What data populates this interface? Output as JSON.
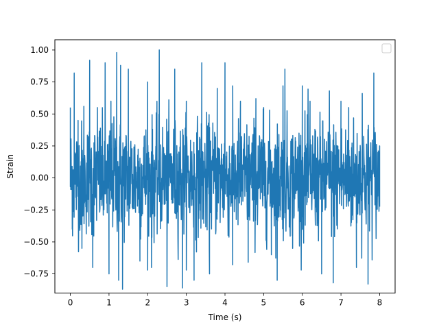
{
  "chart_data": {
    "type": "line",
    "title": "",
    "xlabel": "Time (s)",
    "ylabel": "Strain",
    "xlim": [
      -0.4,
      8.4
    ],
    "ylim": [
      -0.9,
      1.08
    ],
    "xticks": [
      0,
      1,
      2,
      3,
      4,
      5,
      6,
      7,
      8
    ],
    "xtick_labels": [
      "0",
      "1",
      "2",
      "3",
      "4",
      "5",
      "6",
      "7",
      "8"
    ],
    "yticks": [
      -0.75,
      -0.5,
      -0.25,
      0.0,
      0.25,
      0.5,
      0.75,
      1.0
    ],
    "ytick_labels": [
      "−0.75",
      "−0.50",
      "−0.25",
      "0.00",
      "0.25",
      "0.50",
      "0.75",
      "1.00"
    ],
    "grid": false,
    "legend": {
      "placement": "upper right",
      "entries": []
    },
    "series": [
      {
        "color": "#1f77b4",
        "x_range": [
          0,
          8
        ],
        "x": [
          0.0,
          0.05,
          0.1,
          0.2,
          0.3,
          0.35,
          0.5,
          0.58,
          0.7,
          0.9,
          1.0,
          1.05,
          1.2,
          1.25,
          1.3,
          1.35,
          1.5,
          1.8,
          2.0,
          2.1,
          2.3,
          2.5,
          2.7,
          2.9,
          3.0,
          3.2,
          3.4,
          3.6,
          3.8,
          4.0,
          4.2,
          4.4,
          4.6,
          4.8,
          5.0,
          5.2,
          5.35,
          5.5,
          5.55,
          5.75,
          6.0,
          6.2,
          6.5,
          6.7,
          6.8,
          7.0,
          7.2,
          7.4,
          7.55,
          7.7,
          7.85,
          8.0
        ],
        "y": [
          0.55,
          -0.4,
          0.82,
          0.45,
          -0.55,
          0.56,
          0.92,
          -0.7,
          0.55,
          0.9,
          -0.75,
          0.6,
          0.98,
          -0.8,
          0.88,
          -0.87,
          0.85,
          -0.65,
          0.75,
          -0.7,
          1.0,
          -0.85,
          0.85,
          -0.86,
          0.6,
          -0.8,
          0.9,
          -0.75,
          0.7,
          0.9,
          -0.68,
          0.6,
          -0.66,
          0.62,
          0.55,
          -0.6,
          -0.8,
          0.72,
          0.85,
          -0.55,
          0.72,
          0.6,
          -0.75,
          0.68,
          -0.82,
          0.6,
          0.55,
          -0.7,
          0.66,
          -0.83,
          0.82,
          0.25
        ]
      }
    ]
  }
}
